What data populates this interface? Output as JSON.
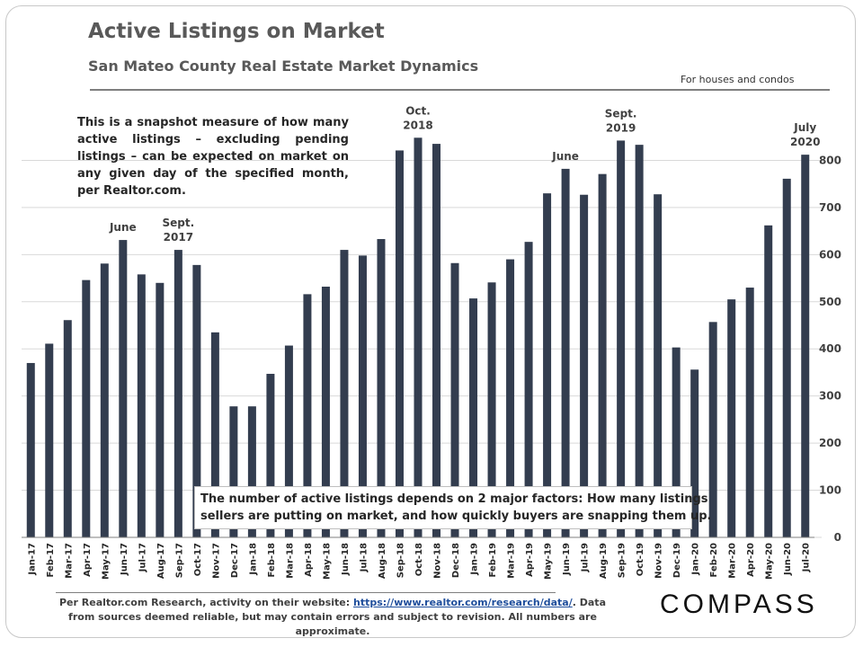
{
  "header": {
    "title": "Active Listings on Market",
    "subtitle": "San Mateo County Real Estate Market Dynamics",
    "note": "For houses and condos"
  },
  "annotations": {
    "description": "This is a snapshot measure of how many active listings – excluding pending listings – can be expected on market on any given day of the specified month, per Realtor.com.",
    "factors_line1": "The number of active listings depends on 2 major factors: How many listings",
    "factors_line2": "sellers are putting on market, and how quickly buyers are snapping them up."
  },
  "footer": {
    "text_before": "Per Realtor.com Research, activity on their website: ",
    "link": "https://www.realtor.com/research/data/",
    "text_after": ". Data from sources deemed reliable, but may contain errors and subject to revision. All numbers are approximate."
  },
  "logo": "COMPASS",
  "chart_data": {
    "type": "bar",
    "title": "Active Listings on Market",
    "ylim": [
      0,
      900
    ],
    "yticks": [
      0,
      100,
      200,
      300,
      400,
      500,
      600,
      700,
      800
    ],
    "grid": true,
    "bar_color": "#333d4f",
    "categories": [
      "Jan-17",
      "Feb-17",
      "Mar-17",
      "Apr-17",
      "May-17",
      "Jun-17",
      "Jul-17",
      "Aug-17",
      "Sep-17",
      "Oct-17",
      "Nov-17",
      "Dec-17",
      "Jan-18",
      "Feb-18",
      "Mar-18",
      "Apr-18",
      "May-18",
      "Jun-18",
      "Jul-18",
      "Aug-18",
      "Sep-18",
      "Oct-18",
      "Nov-18",
      "Dec-18",
      "Jan-19",
      "Feb-19",
      "Mar-19",
      "Apr-19",
      "May-19",
      "Jun-19",
      "Jul-19",
      "Aug-19",
      "Sep-19",
      "Oct-19",
      "Nov-19",
      "Dec-19",
      "Jan-20",
      "Feb-20",
      "Mar-20",
      "Apr-20",
      "May-20",
      "Jun-20",
      "Jul-20"
    ],
    "values": [
      370,
      411,
      461,
      546,
      581,
      631,
      558,
      540,
      610,
      578,
      435,
      278,
      278,
      347,
      407,
      516,
      532,
      610,
      598,
      633,
      821,
      848,
      835,
      582,
      507,
      541,
      590,
      627,
      730,
      782,
      727,
      771,
      842,
      833,
      728,
      403,
      356,
      457,
      505,
      530,
      662,
      761,
      812
    ],
    "bar_labels": [
      {
        "category": "Jun-17",
        "lines": [
          "June"
        ]
      },
      {
        "category": "Sep-17",
        "lines": [
          "Sept.",
          "2017"
        ]
      },
      {
        "category": "Oct-18",
        "lines": [
          "Oct.",
          "2018"
        ]
      },
      {
        "category": "Jun-19",
        "lines": [
          "June"
        ]
      },
      {
        "category": "Sep-19",
        "lines": [
          "Sept.",
          "2019"
        ]
      },
      {
        "category": "Jul-20",
        "lines": [
          "July",
          "2020"
        ]
      }
    ]
  }
}
